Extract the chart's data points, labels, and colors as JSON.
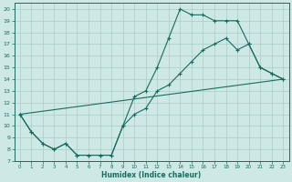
{
  "title": "",
  "xlabel": "Humidex (Indice chaleur)",
  "background_color": "#cde8e5",
  "line_color": "#1a6b5e",
  "grid_color": "#aaccc8",
  "xlim": [
    -0.5,
    23.5
  ],
  "ylim": [
    7,
    20.5
  ],
  "xticks": [
    0,
    1,
    2,
    3,
    4,
    5,
    6,
    7,
    8,
    9,
    10,
    11,
    12,
    13,
    14,
    15,
    16,
    17,
    18,
    19,
    20,
    21,
    22,
    23
  ],
  "yticks": [
    7,
    8,
    9,
    10,
    11,
    12,
    13,
    14,
    15,
    16,
    17,
    18,
    19,
    20
  ],
  "line1_x": [
    0,
    1,
    2,
    3,
    4,
    5,
    6,
    7,
    8,
    9,
    10,
    11,
    12,
    13,
    14,
    15,
    16,
    17,
    18,
    19,
    20,
    21,
    22,
    23
  ],
  "line1_y": [
    11,
    9.5,
    8.5,
    8.0,
    8.5,
    7.5,
    7.5,
    7.5,
    7.5,
    10.0,
    12.5,
    13.0,
    15.0,
    17.5,
    20.0,
    19.5,
    19.5,
    19.0,
    19.0,
    19.0,
    17.0,
    15.0,
    14.5,
    14.0
  ],
  "line2_x": [
    0,
    1,
    2,
    3,
    4,
    5,
    6,
    7,
    8,
    9,
    10,
    11,
    12,
    13,
    14,
    15,
    16,
    17,
    18,
    19,
    20,
    21,
    22,
    23
  ],
  "line2_y": [
    11,
    9.5,
    8.5,
    8.0,
    8.5,
    7.5,
    7.5,
    7.5,
    7.5,
    10.0,
    11.0,
    11.5,
    13.0,
    13.5,
    14.5,
    15.5,
    16.5,
    17.0,
    17.5,
    16.5,
    17.0,
    15.0,
    14.5,
    14.0
  ],
  "line3_x": [
    0,
    23
  ],
  "line3_y": [
    11,
    14.0
  ]
}
